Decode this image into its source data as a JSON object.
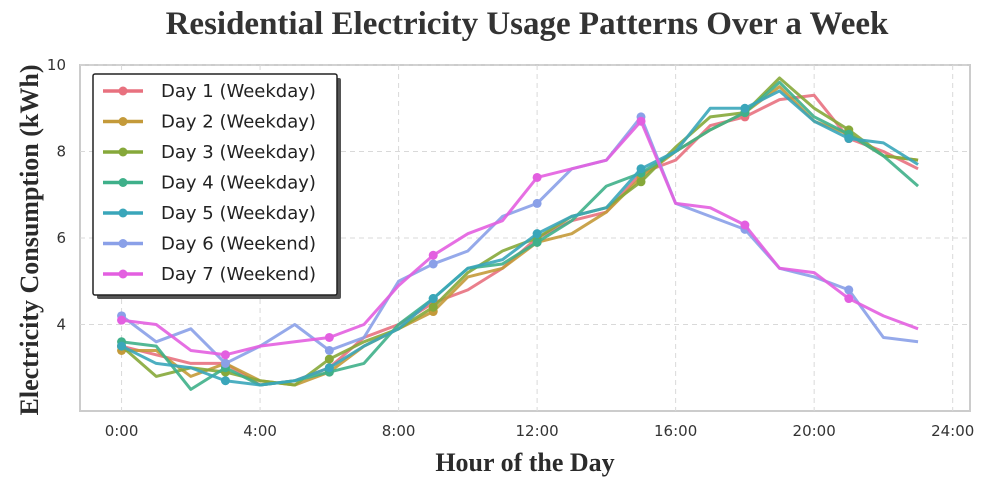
{
  "chart_data": {
    "type": "line",
    "title": "Residential Electricity Usage Patterns Over a Week",
    "xlabel": "Hour of the Day",
    "ylabel": "Electricity Consumption (kWh)",
    "xlim": [
      -1.2,
      24.5
    ],
    "ylim": [
      2.0,
      10.0
    ],
    "xticks": [
      {
        "value": 0,
        "label": "0:00"
      },
      {
        "value": 4,
        "label": "4:00"
      },
      {
        "value": 8,
        "label": "8:00"
      },
      {
        "value": 12,
        "label": "12:00"
      },
      {
        "value": 16,
        "label": "16:00"
      },
      {
        "value": 20,
        "label": "20:00"
      },
      {
        "value": 24,
        "label": "24:00"
      }
    ],
    "yticks": [
      {
        "value": 4,
        "label": "4"
      },
      {
        "value": 6,
        "label": "6"
      },
      {
        "value": 8,
        "label": "8"
      },
      {
        "value": 10,
        "label": "10"
      }
    ],
    "grid": true,
    "legend_position": "top-left",
    "marker_every_hours": 3,
    "x": [
      0,
      1,
      2,
      3,
      4,
      5,
      6,
      7,
      8,
      9,
      10,
      11,
      12,
      13,
      14,
      15,
      16,
      17,
      18,
      19,
      20,
      21,
      22,
      23
    ],
    "series": [
      {
        "name": "Day 1 (Weekday)",
        "color": "#e8717f",
        "values": [
          3.5,
          3.3,
          3.1,
          3.1,
          2.6,
          2.7,
          3.0,
          3.7,
          4.0,
          4.5,
          4.8,
          5.3,
          6.0,
          6.4,
          6.6,
          7.5,
          7.8,
          8.6,
          8.8,
          9.2,
          9.3,
          8.3,
          8.0,
          7.6
        ]
      },
      {
        "name": "Day 2 (Weekday)",
        "color": "#c49a3a",
        "values": [
          3.4,
          3.4,
          2.8,
          3.1,
          2.7,
          2.6,
          2.9,
          3.5,
          3.9,
          4.3,
          5.1,
          5.3,
          5.9,
          6.1,
          6.6,
          7.4,
          8.0,
          8.5,
          8.9,
          9.5,
          8.7,
          8.4,
          7.9,
          7.8
        ]
      },
      {
        "name": "Day 3 (Weekday)",
        "color": "#86a83a",
        "values": [
          3.5,
          2.8,
          3.0,
          2.9,
          2.7,
          2.6,
          3.2,
          3.6,
          3.9,
          4.4,
          5.2,
          5.7,
          6.0,
          6.5,
          6.7,
          7.3,
          8.1,
          8.8,
          8.9,
          9.7,
          9.0,
          8.5,
          7.9,
          7.8
        ]
      },
      {
        "name": "Day 4 (Weekday)",
        "color": "#3fb08a",
        "values": [
          3.6,
          3.5,
          2.5,
          3.0,
          2.6,
          2.7,
          2.9,
          3.1,
          4.0,
          4.6,
          5.3,
          5.4,
          5.9,
          6.4,
          7.2,
          7.5,
          8.0,
          8.5,
          8.9,
          9.6,
          8.8,
          8.4,
          7.9,
          7.2
        ]
      },
      {
        "name": "Day 5 (Weekday)",
        "color": "#3aa6ba",
        "values": [
          3.5,
          3.1,
          3.0,
          2.7,
          2.6,
          2.7,
          3.0,
          3.5,
          3.9,
          4.6,
          5.3,
          5.5,
          6.1,
          6.5,
          6.7,
          7.6,
          8.0,
          9.0,
          9.0,
          9.4,
          8.7,
          8.3,
          8.2,
          7.7
        ]
      },
      {
        "name": "Day 6 (Weekend)",
        "color": "#8aa0e8",
        "values": [
          4.2,
          3.6,
          3.9,
          3.1,
          3.5,
          4.0,
          3.4,
          3.7,
          5.0,
          5.4,
          5.7,
          6.5,
          6.8,
          7.6,
          7.8,
          8.8,
          6.8,
          6.5,
          6.2,
          5.3,
          5.1,
          4.8,
          3.7,
          3.6
        ]
      },
      {
        "name": "Day 7 (Weekend)",
        "color": "#e35fe0",
        "values": [
          4.1,
          4.0,
          3.4,
          3.3,
          3.5,
          3.6,
          3.7,
          4.0,
          4.9,
          5.6,
          6.1,
          6.4,
          7.4,
          7.6,
          7.8,
          8.7,
          6.8,
          6.7,
          6.3,
          5.3,
          5.2,
          4.6,
          4.2,
          3.9
        ]
      }
    ]
  }
}
